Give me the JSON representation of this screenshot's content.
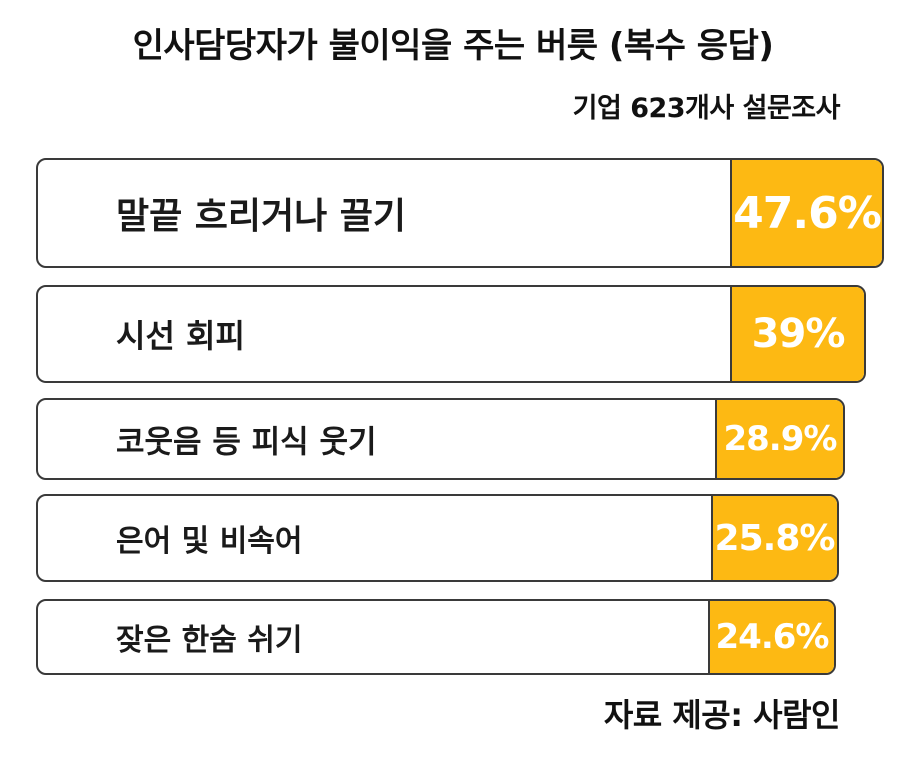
{
  "title": "인사담당자가 불이익을 주는 버릇 (복수 응답)",
  "subtitle": "기업 623개사 설문조사",
  "source": "자료 제공: 사람인",
  "chart_data": {
    "type": "bar",
    "orientation": "horizontal",
    "title": "인사담당자가 불이익을 주는 버릇 (복수 응답)",
    "subtitle": "기업 623개사 설문조사",
    "categories": [
      "말끝 흐리거나 끌기",
      "시선 회피",
      "코웃음 등 피식 웃기",
      "은어 및 비속어",
      "잦은 한숨 쉬기"
    ],
    "values": [
      47.6,
      39,
      28.9,
      25.8,
      24.6
    ],
    "value_labels": [
      "47.6%",
      "39%",
      "28.9%",
      "25.8%",
      "24.6%"
    ],
    "unit": "%",
    "colors": {
      "value_fill": "#FDB913",
      "bar_fill": "#FFFFFF",
      "border": "#3A3A3A"
    },
    "legend": "none",
    "grid": false
  }
}
